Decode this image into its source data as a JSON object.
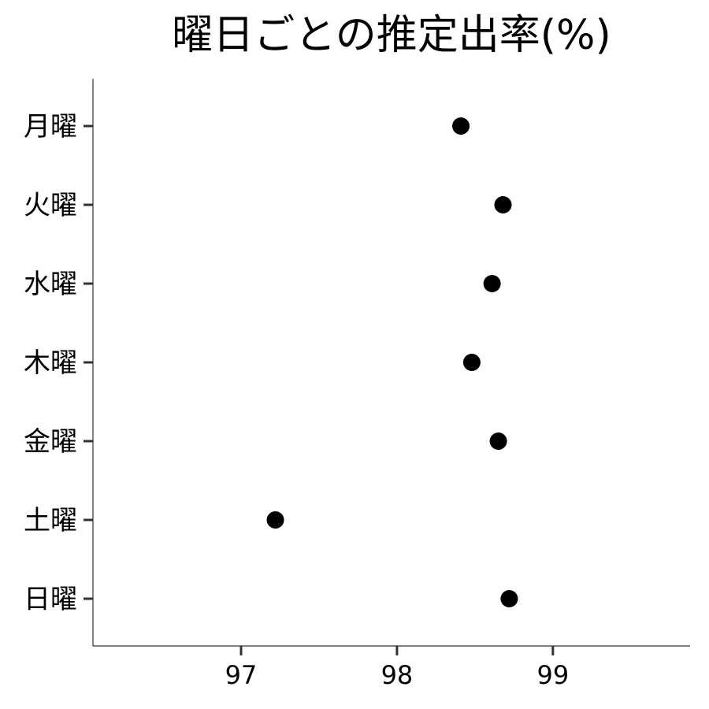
{
  "chart_data": {
    "type": "scatter",
    "title": "曜日ごとの推定出率(%)",
    "xlabel": "",
    "ylabel": "",
    "categories": [
      "月曜",
      "火曜",
      "水曜",
      "木曜",
      "金曜",
      "土曜",
      "日曜"
    ],
    "values": [
      98.41,
      98.68,
      98.61,
      98.48,
      98.65,
      97.22,
      98.72
    ],
    "xlim": [
      96.05,
      99.88
    ],
    "xticks": [
      "97",
      "98",
      "99"
    ],
    "grid": false,
    "point_color": "#000000"
  }
}
